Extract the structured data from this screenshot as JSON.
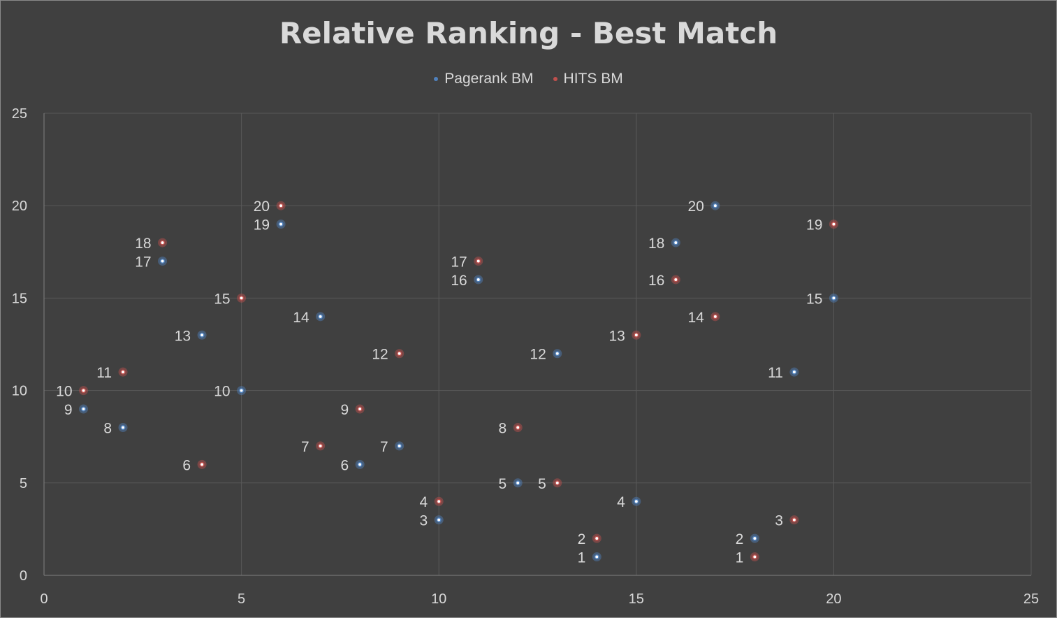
{
  "chart_data": {
    "type": "scatter",
    "title": "Relative Ranking - Best Match",
    "xlabel": "",
    "ylabel": "",
    "xlim": [
      0,
      25
    ],
    "ylim": [
      0,
      25
    ],
    "x_ticks": [
      "0",
      "5",
      "10",
      "15",
      "20",
      "25"
    ],
    "y_ticks": [
      "0",
      "5",
      "10",
      "15",
      "20",
      "25"
    ],
    "grid": true,
    "legend_position": "top-center",
    "background_color": "#404040",
    "grid_color": "#595959",
    "text_color": "#d9d9d9",
    "series": [
      {
        "name": "Pagerank BM",
        "color": "#4f81bd",
        "points": [
          {
            "x": 14,
            "y": 1,
            "label": "1"
          },
          {
            "x": 18,
            "y": 2,
            "label": "2"
          },
          {
            "x": 10,
            "y": 3,
            "label": "3"
          },
          {
            "x": 15,
            "y": 4,
            "label": "4"
          },
          {
            "x": 12,
            "y": 5,
            "label": "5"
          },
          {
            "x": 8,
            "y": 6,
            "label": "6"
          },
          {
            "x": 9,
            "y": 7,
            "label": "7"
          },
          {
            "x": 2,
            "y": 8,
            "label": "8"
          },
          {
            "x": 1,
            "y": 9,
            "label": "9"
          },
          {
            "x": 5,
            "y": 10,
            "label": "10"
          },
          {
            "x": 19,
            "y": 11,
            "label": "11"
          },
          {
            "x": 13,
            "y": 12,
            "label": "12"
          },
          {
            "x": 4,
            "y": 13,
            "label": "13"
          },
          {
            "x": 7,
            "y": 14,
            "label": "14"
          },
          {
            "x": 20,
            "y": 15,
            "label": "15"
          },
          {
            "x": 11,
            "y": 16,
            "label": "16"
          },
          {
            "x": 3,
            "y": 17,
            "label": "17"
          },
          {
            "x": 16,
            "y": 18,
            "label": "18"
          },
          {
            "x": 6,
            "y": 19,
            "label": "19"
          },
          {
            "x": 17,
            "y": 20,
            "label": "20"
          }
        ]
      },
      {
        "name": "HITS BM",
        "color": "#c0504d",
        "points": [
          {
            "x": 18,
            "y": 1,
            "label": "1"
          },
          {
            "x": 14,
            "y": 2,
            "label": "2"
          },
          {
            "x": 19,
            "y": 3,
            "label": "3"
          },
          {
            "x": 10,
            "y": 4,
            "label": "4"
          },
          {
            "x": 13,
            "y": 5,
            "label": "5"
          },
          {
            "x": 4,
            "y": 6,
            "label": "6"
          },
          {
            "x": 7,
            "y": 7,
            "label": "7"
          },
          {
            "x": 12,
            "y": 8,
            "label": "8"
          },
          {
            "x": 8,
            "y": 9,
            "label": "9"
          },
          {
            "x": 1,
            "y": 10,
            "label": "10"
          },
          {
            "x": 2,
            "y": 11,
            "label": "11"
          },
          {
            "x": 9,
            "y": 12,
            "label": "12"
          },
          {
            "x": 15,
            "y": 13,
            "label": "13"
          },
          {
            "x": 17,
            "y": 14,
            "label": "14"
          },
          {
            "x": 5,
            "y": 15,
            "label": "15"
          },
          {
            "x": 16,
            "y": 16,
            "label": "16"
          },
          {
            "x": 11,
            "y": 17,
            "label": "17"
          },
          {
            "x": 3,
            "y": 18,
            "label": "18"
          },
          {
            "x": 20,
            "y": 19,
            "label": "19"
          },
          {
            "x": 6,
            "y": 20,
            "label": "20"
          }
        ]
      }
    ]
  }
}
